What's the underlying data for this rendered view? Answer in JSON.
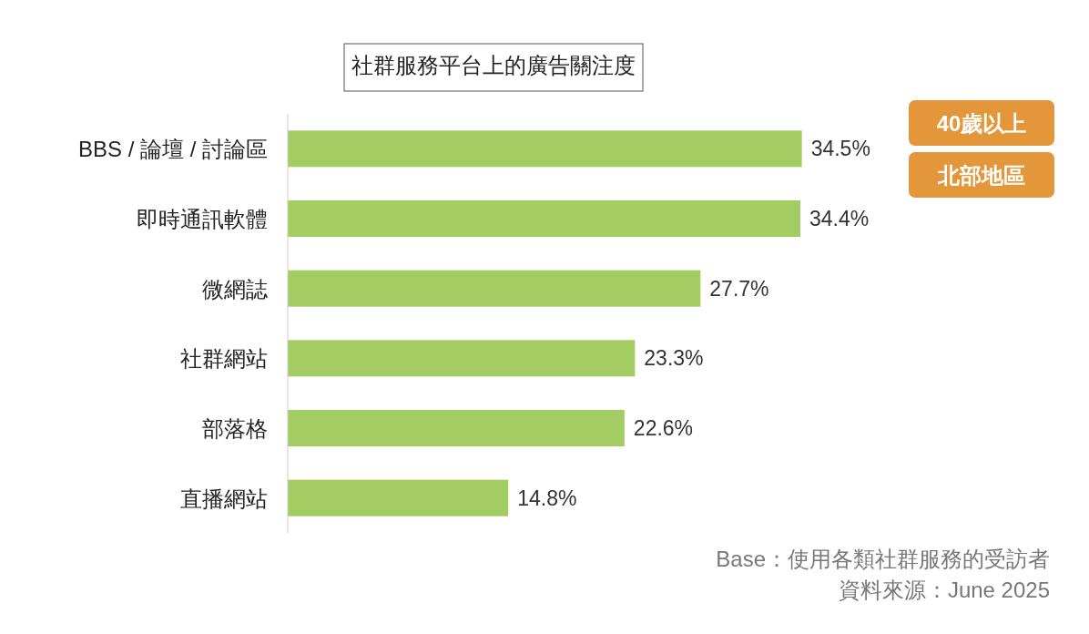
{
  "chart_data": {
    "type": "bar",
    "orientation": "horizontal",
    "title": "社群服務平台上的廣告關注度",
    "categories": [
      "BBS / 論壇 / 討論區",
      "即時通訊軟體",
      "微網誌",
      "社群網站",
      "部落格",
      "直播網站"
    ],
    "values": [
      34.5,
      34.4,
      27.7,
      23.3,
      22.6,
      14.8
    ],
    "value_labels": [
      "34.5%",
      "34.4%",
      "27.7%",
      "23.3%",
      "22.6%",
      "14.8%"
    ],
    "color": "#a3cd62",
    "annotations": [
      "40歲以上",
      "北部地區",
      "Base：使用各類社群服務的受訪者",
      "資料來源：June 2025"
    ]
  }
}
